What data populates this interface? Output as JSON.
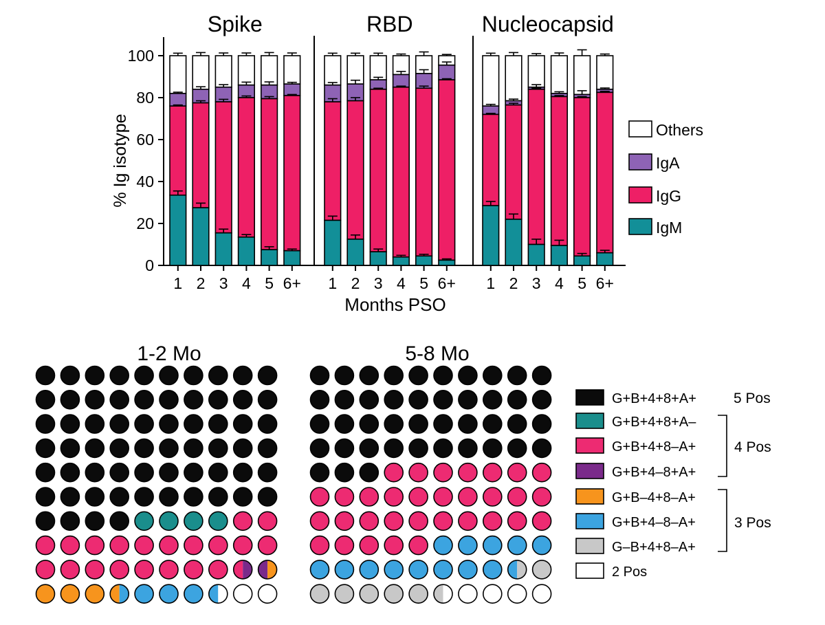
{
  "chart_data": [
    {
      "type": "bar",
      "stacked": true,
      "ylabel": "% Ig isotype",
      "xlabel": "Months PSO",
      "ylim": [
        0,
        100
      ],
      "yticks": [
        0,
        20,
        40,
        60,
        80,
        100
      ],
      "categories": [
        "1",
        "2",
        "3",
        "4",
        "5",
        "6+"
      ],
      "legend": [
        {
          "name": "Others",
          "color": "#ffffff"
        },
        {
          "name": "IgA",
          "color": "#8e63b5"
        },
        {
          "name": "IgG",
          "color": "#ee1f66"
        },
        {
          "name": "IgM",
          "color": "#128f98"
        }
      ],
      "panels": [
        {
          "title": "Spike",
          "igm": [
            33.5,
            27.5,
            15.5,
            13.5,
            7.5,
            7
          ],
          "igg_top": [
            76,
            77.5,
            78,
            80,
            79.5,
            81
          ],
          "iga_top": [
            82,
            84,
            85,
            86,
            86,
            86.5
          ],
          "igm_err": [
            2,
            2.2,
            1.8,
            1.2,
            1.4,
            0.8
          ],
          "iga_err": [
            0.6,
            1.2,
            1.2,
            1.4,
            1.5,
            0.8
          ],
          "igg_err": [
            0.5,
            1,
            1.2,
            0.8,
            1,
            0.5
          ],
          "total_err": [
            1.2,
            1.5,
            1.3,
            1.3,
            1.5,
            1.3
          ]
        },
        {
          "title": "RBD",
          "igm": [
            21.5,
            12.5,
            6.5,
            4,
            4.5,
            2.5
          ],
          "igg_top": [
            78,
            78.5,
            84,
            85,
            84.5,
            88.5
          ],
          "iga_top": [
            86,
            86.5,
            88.5,
            91,
            91.5,
            95.5
          ],
          "igm_err": [
            2,
            2,
            1.3,
            0.8,
            0.8,
            0.6
          ],
          "iga_err": [
            1.2,
            1.8,
            1.2,
            1.5,
            1.8,
            1.5
          ],
          "igg_err": [
            1.5,
            1.5,
            0.5,
            0.5,
            1,
            0.5
          ],
          "total_err": [
            1.2,
            1.2,
            1.2,
            0.8,
            1.8,
            0.6
          ]
        },
        {
          "title": "Nucleocapsid",
          "igm": [
            28.5,
            22,
            10,
            9.5,
            4.5,
            6
          ],
          "igg_top": [
            72,
            76.5,
            84,
            80.5,
            80,
            82.5
          ],
          "iga_top": [
            76,
            78.5,
            85,
            82,
            81.5,
            84
          ],
          "igm_err": [
            2,
            2.5,
            2.5,
            2.5,
            1.2,
            1.2
          ],
          "iga_err": [
            0.8,
            0.8,
            1.2,
            0.8,
            1.8,
            0.6
          ],
          "igg_err": [
            0.5,
            0.8,
            0.5,
            0.5,
            0.5,
            0.5
          ],
          "total_err": [
            1.2,
            1.5,
            1,
            1.3,
            2.8,
            0.8
          ]
        }
      ]
    },
    {
      "type": "waffle",
      "panels": [
        {
          "title": "1-2 Mo",
          "rows": [
            [
              "k",
              "k",
              "k",
              "k",
              "k",
              "k",
              "k",
              "k",
              "k",
              "k"
            ],
            [
              "k",
              "k",
              "k",
              "k",
              "k",
              "k",
              "k",
              "k",
              "k",
              "k"
            ],
            [
              "k",
              "k",
              "k",
              "k",
              "k",
              "k",
              "k",
              "k",
              "k",
              "k"
            ],
            [
              "k",
              "k",
              "k",
              "k",
              "k",
              "k",
              "k",
              "k",
              "k",
              "k"
            ],
            [
              "k",
              "k",
              "k",
              "k",
              "k",
              "k",
              "k",
              "k",
              "k",
              "k"
            ],
            [
              "k",
              "k",
              "k",
              "k",
              "k",
              "k",
              "k",
              "k",
              "k",
              "k"
            ],
            [
              "k",
              "k",
              "k",
              "k",
              "t",
              "t",
              "t",
              "t",
              "p",
              "p"
            ],
            [
              "p",
              "p",
              "p",
              "p",
              "p",
              "p",
              "p",
              "p",
              "p",
              "p"
            ],
            [
              "p",
              "p",
              "p",
              "p",
              "p",
              "p",
              "p",
              "p",
              "p|u",
              "u|o"
            ],
            [
              "o",
              "o",
              "o",
              "o|b",
              "b",
              "b",
              "b",
              "b|w",
              "w",
              "w"
            ]
          ]
        },
        {
          "title": "5-8 Mo",
          "rows": [
            [
              "k",
              "k",
              "k",
              "k",
              "k",
              "k",
              "k",
              "k",
              "k",
              "k"
            ],
            [
              "k",
              "k",
              "k",
              "k",
              "k",
              "k",
              "k",
              "k",
              "k",
              "k"
            ],
            [
              "k",
              "k",
              "k",
              "k",
              "k",
              "k",
              "k",
              "k",
              "k",
              "k"
            ],
            [
              "k",
              "k",
              "k",
              "k",
              "k",
              "k",
              "k",
              "k",
              "k",
              "k"
            ],
            [
              "k",
              "k",
              "k",
              "p",
              "p",
              "p",
              "p",
              "p",
              "p",
              "p"
            ],
            [
              "p",
              "p",
              "p",
              "p",
              "p",
              "p",
              "p",
              "p",
              "p",
              "p"
            ],
            [
              "p",
              "p",
              "p",
              "p",
              "p",
              "p",
              "p",
              "p",
              "p",
              "p"
            ],
            [
              "p",
              "p",
              "p",
              "p",
              "p",
              "b",
              "b",
              "b",
              "b",
              "b"
            ],
            [
              "b",
              "b",
              "b",
              "b",
              "b",
              "b",
              "b",
              "b",
              "b|g",
              "g"
            ],
            [
              "g",
              "g",
              "g",
              "g",
              "g",
              "g|w",
              "w",
              "w",
              "w",
              "w"
            ]
          ]
        }
      ],
      "colors": {
        "k": "#0b0b0b",
        "t": "#1a8e8c",
        "p": "#ed2b72",
        "u": "#7a2a8a",
        "o": "#f7941d",
        "b": "#3ca4e0",
        "g": "#c8c8c8",
        "w": "#ffffff"
      },
      "legend": [
        {
          "code": "k",
          "label": "G+B+4+8+A+"
        },
        {
          "code": "t",
          "label": "G+B+4+8+A–"
        },
        {
          "code": "p",
          "label": "G+B+4+8–A+"
        },
        {
          "code": "u",
          "label": "G+B+4–8+A+"
        },
        {
          "code": "o",
          "label": "G+B–4+8–A+"
        },
        {
          "code": "b",
          "label": "G+B+4–8–A+"
        },
        {
          "code": "g",
          "label": "G–B+4+8–A+"
        },
        {
          "code": "w",
          "label": "2 Pos"
        }
      ],
      "groups": [
        "5 Pos",
        "4 Pos",
        "3 Pos"
      ]
    }
  ]
}
